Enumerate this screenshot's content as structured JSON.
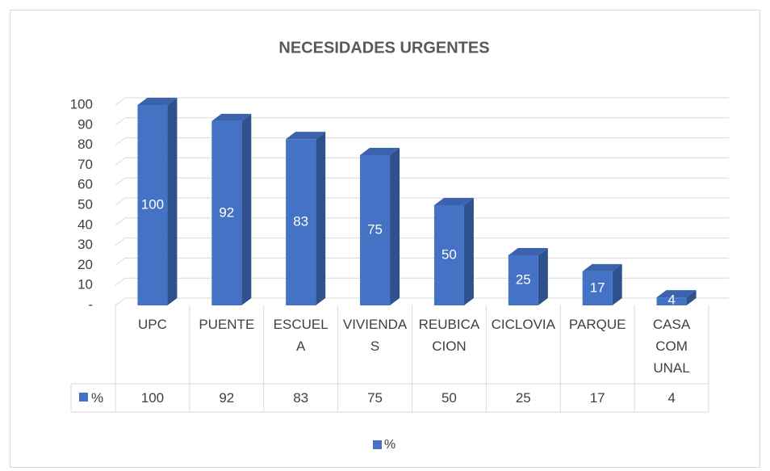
{
  "chart_data": {
    "type": "bar3d",
    "title": "NECESIDADES URGENTES",
    "categories": [
      "UPC",
      "PUENTE",
      "ESCUELA",
      "VIVIENDAS",
      "REUBICACION",
      "CICLOVIA",
      "PARQUE",
      "CASA COMUNAL"
    ],
    "series": [
      {
        "name": "%",
        "color": "#4472c4",
        "values": [
          100,
          92,
          83,
          75,
          50,
          25,
          17,
          4
        ]
      }
    ],
    "ylim": [
      0,
      100
    ],
    "yticks": [
      {
        "value": 0,
        "label": "-"
      },
      10,
      20,
      30,
      40,
      50,
      60,
      70,
      80,
      90,
      100
    ],
    "grid": true,
    "legend": "bottom",
    "data_table": true
  }
}
